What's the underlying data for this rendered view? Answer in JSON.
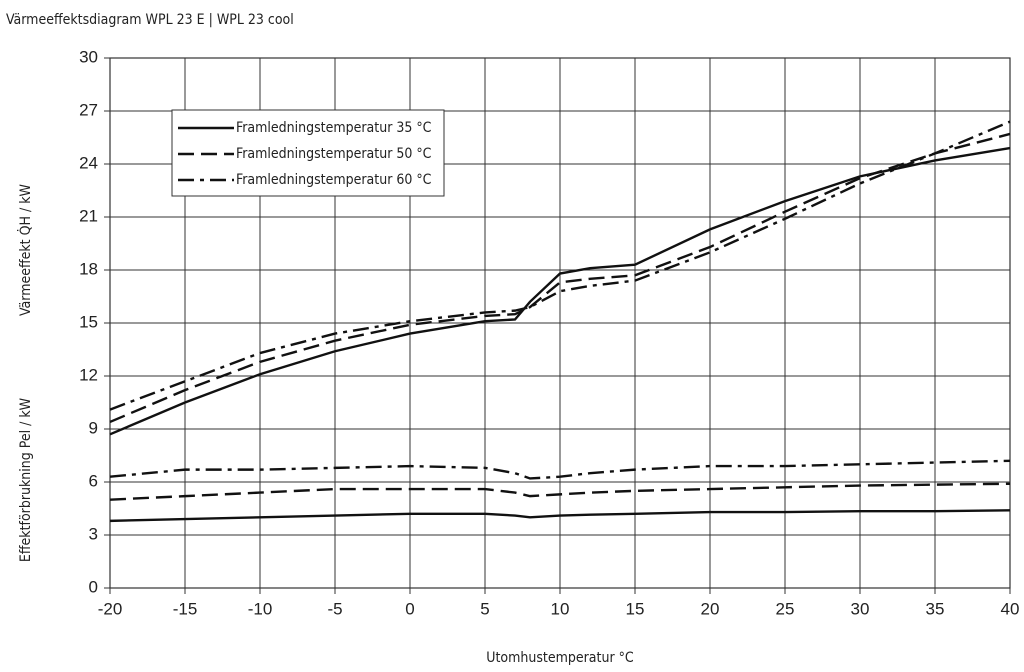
{
  "chart_data": {
    "type": "line",
    "title": "Värmeeffektsdiagram WPL 23 E | WPL 23 cool",
    "x_label": "Utomhustemperatur °C",
    "y_label_upper": "Värmeeffekt Q̇H / kW",
    "y_label_lower": "Effektförbrukning Pel / kW",
    "x": [
      -20,
      -15,
      -10,
      -5,
      0,
      5,
      7,
      8,
      10,
      12,
      15,
      20,
      25,
      30,
      35,
      40
    ],
    "xlim": [
      -20,
      40
    ],
    "xticks": [
      -20,
      -15,
      -10,
      -5,
      0,
      5,
      10,
      15,
      20,
      25,
      30,
      35,
      40
    ],
    "ylim": [
      0,
      30
    ],
    "yticks": [
      0,
      3,
      6,
      9,
      12,
      15,
      18,
      21,
      24,
      27,
      30
    ],
    "grid": true,
    "legend": "upper left",
    "series": [
      {
        "name": "Framledningstemperatur 35 °C",
        "color": "#111111",
        "dash": "solid",
        "values": [
          8.7,
          10.5,
          12.1,
          13.4,
          14.4,
          15.1,
          15.2,
          16.2,
          17.8,
          18.1,
          18.3,
          20.3,
          21.9,
          23.3,
          24.2,
          24.9
        ],
        "power_values": [
          3.8,
          3.9,
          4.0,
          4.1,
          4.2,
          4.2,
          4.1,
          4.0,
          4.1,
          4.15,
          4.2,
          4.3,
          4.3,
          4.35,
          4.35,
          4.4
        ]
      },
      {
        "name": "Framledningstemperatur 50 °C",
        "color": "#111111",
        "dash": "dashed",
        "values": [
          9.4,
          11.2,
          12.8,
          14.0,
          14.9,
          15.4,
          15.5,
          15.9,
          17.3,
          17.5,
          17.7,
          19.3,
          21.3,
          23.2,
          24.6,
          25.7
        ],
        "power_values": [
          5.0,
          5.2,
          5.4,
          5.6,
          5.6,
          5.6,
          5.4,
          5.2,
          5.3,
          5.4,
          5.5,
          5.6,
          5.7,
          5.8,
          5.85,
          5.9
        ]
      },
      {
        "name": "Framledningstemperatur 60 °C",
        "color": "#111111",
        "dash": "dashdot",
        "values": [
          10.1,
          11.7,
          13.3,
          14.4,
          15.1,
          15.6,
          15.7,
          15.9,
          16.8,
          17.1,
          17.4,
          19.0,
          20.9,
          22.9,
          24.6,
          26.4
        ],
        "power_values": [
          6.3,
          6.7,
          6.7,
          6.8,
          6.9,
          6.8,
          6.5,
          6.2,
          6.3,
          6.5,
          6.7,
          6.9,
          6.9,
          7.0,
          7.1,
          7.2
        ]
      }
    ]
  }
}
